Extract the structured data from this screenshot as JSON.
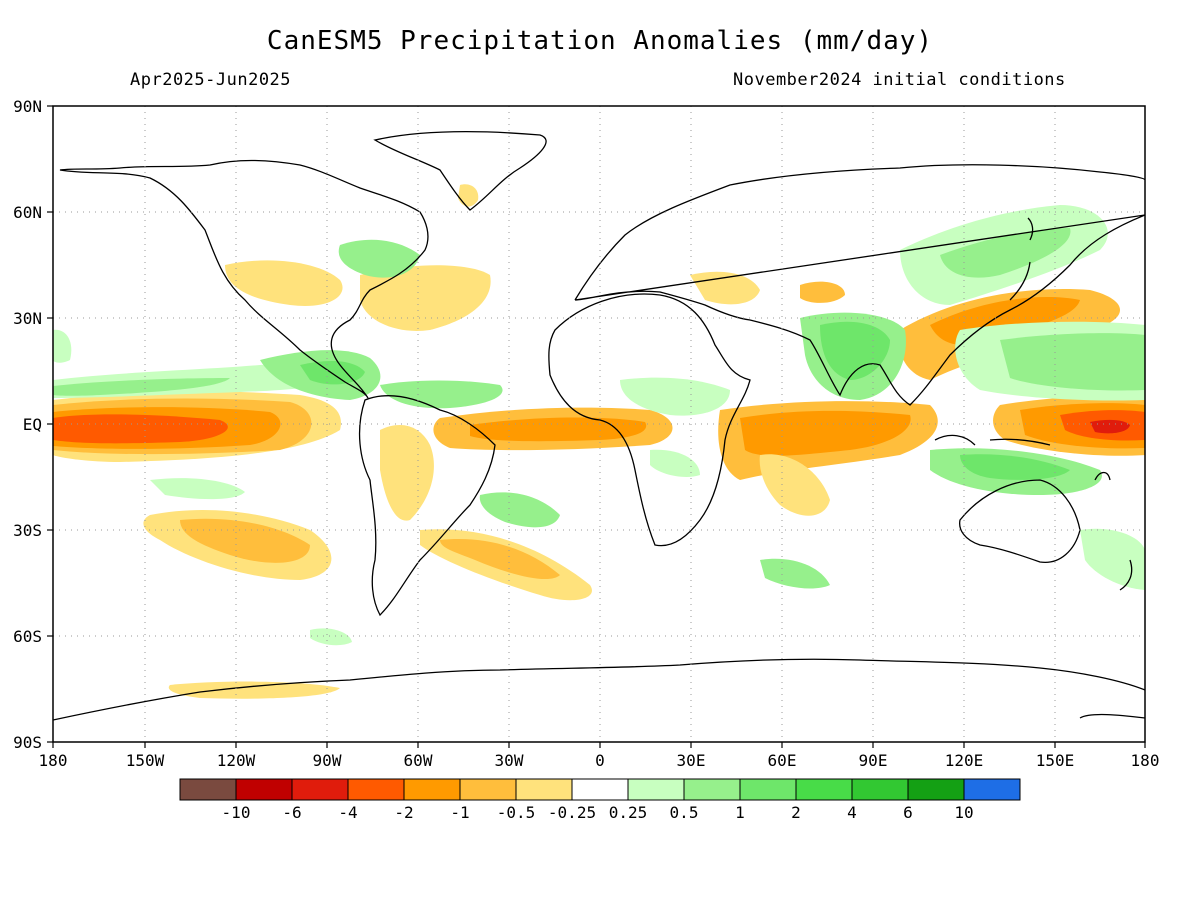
{
  "title": "CanESM5 Precipitation Anomalies (mm/day)",
  "period": "Apr2025-Jun2025",
  "init": "November2024 initial conditions",
  "lat_labels": [
    "90N",
    "60N",
    "30N",
    "EQ",
    "30S",
    "60S",
    "90S"
  ],
  "lon_labels": [
    "180",
    "150W",
    "120W",
    "90W",
    "60W",
    "30W",
    "0",
    "30E",
    "60E",
    "90E",
    "120E",
    "150E",
    "180"
  ],
  "colorbar": {
    "colors": [
      "#7a4a3f",
      "#c00000",
      "#e01c0c",
      "#ff5a00",
      "#ff9a00",
      "#ffbe3c",
      "#ffe27c",
      "#ffffff",
      "#c8ffc0",
      "#96f08c",
      "#6ee66a",
      "#48dc48",
      "#32c832",
      "#14a014",
      "#1e6ee6"
    ],
    "labels": [
      "-10",
      "-6",
      "-4",
      "-2",
      "-1",
      "-0.5",
      "-0.25",
      "0.25",
      "0.5",
      "1",
      "2",
      "4",
      "6",
      "10"
    ]
  },
  "legend_colors": {
    "strong_dry": "#e01c0c",
    "moderate_dry": "#ff9a00",
    "weak_dry": "#ffe27c",
    "weak_wet": "#c8ffc0",
    "moderate_wet": "#6ee66a",
    "strong_wet": "#32c832"
  }
}
